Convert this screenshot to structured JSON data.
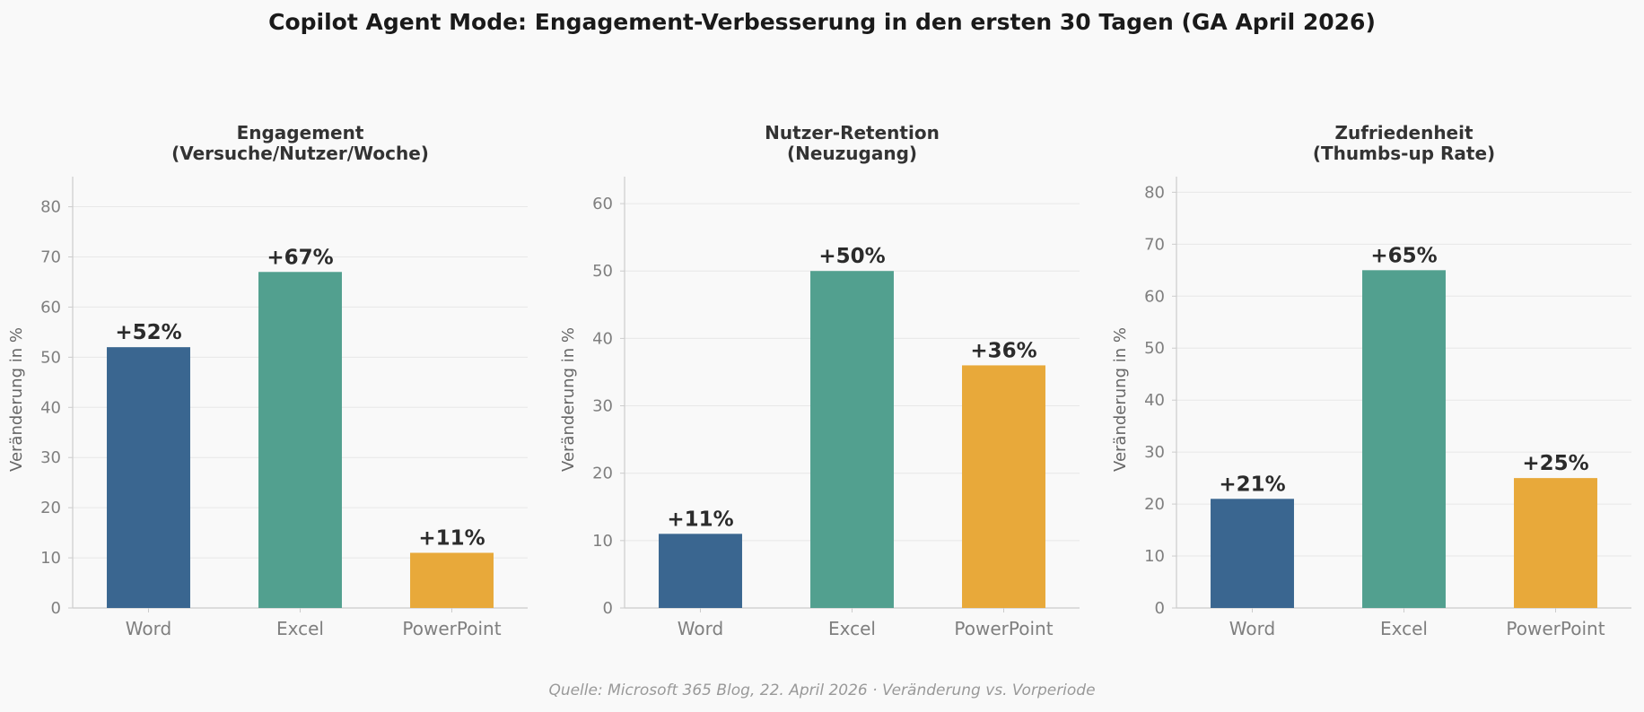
{
  "title": "Copilot Agent Mode: Engagement-Verbesserung in den ersten 30 Tagen (GA April 2026)",
  "footer": "Quelle: Microsoft 365 Blog, 22. April 2026 · Veränderung vs. Vorperiode",
  "colors": {
    "Word": "#3a6690",
    "Excel": "#52a08f",
    "PowerPoint": "#e8a93a",
    "grid": "#e8e8e8",
    "axis": "#cccccc"
  },
  "chart_data": [
    {
      "type": "bar",
      "title_lines": [
        "Engagement",
        "(Versuche/Nutzer/Woche)"
      ],
      "categories": [
        "Word",
        "Excel",
        "PowerPoint"
      ],
      "values": [
        52,
        67,
        11
      ],
      "value_labels": [
        "+52%",
        "+67%",
        "+11%"
      ],
      "ylabel": "Veränderung in %",
      "ylim": [
        0,
        86
      ],
      "yticks": [
        0,
        10,
        20,
        30,
        40,
        50,
        60,
        70,
        80
      ],
      "grid": true
    },
    {
      "type": "bar",
      "title_lines": [
        "Nutzer-Retention",
        "(Neuzugang)"
      ],
      "categories": [
        "Word",
        "Excel",
        "PowerPoint"
      ],
      "values": [
        11,
        50,
        36
      ],
      "value_labels": [
        "+11%",
        "+50%",
        "+36%"
      ],
      "ylabel": "Veränderung in %",
      "ylim": [
        0,
        64
      ],
      "yticks": [
        0,
        10,
        20,
        30,
        40,
        50,
        60
      ],
      "grid": true
    },
    {
      "type": "bar",
      "title_lines": [
        "Zufriedenheit",
        "(Thumbs-up Rate)"
      ],
      "categories": [
        "Word",
        "Excel",
        "PowerPoint"
      ],
      "values": [
        21,
        65,
        25
      ],
      "value_labels": [
        "+21%",
        "+65%",
        "+25%"
      ],
      "ylabel": "Veränderung in %",
      "ylim": [
        0,
        83
      ],
      "yticks": [
        0,
        10,
        20,
        30,
        40,
        50,
        60,
        70,
        80
      ],
      "grid": true
    }
  ]
}
